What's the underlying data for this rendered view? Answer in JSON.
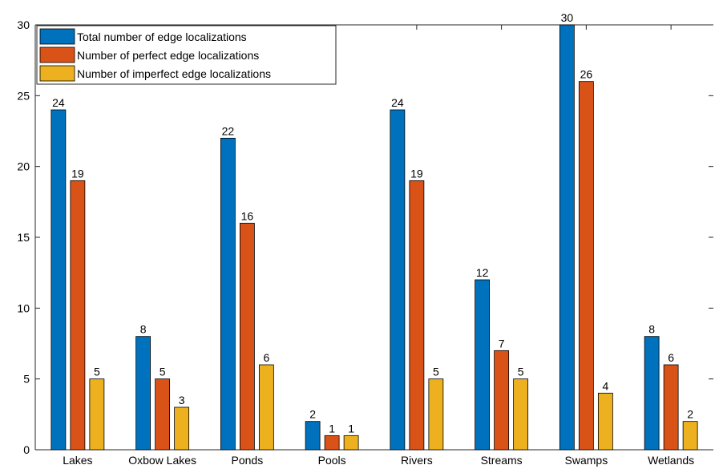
{
  "chart_data": {
    "type": "bar",
    "categories": [
      "Lakes",
      "Oxbow Lakes",
      "Ponds",
      "Pools",
      "Rivers",
      "Streams",
      "Swamps",
      "Wetlands"
    ],
    "series": [
      {
        "name": "Total number of edge localizations",
        "values": [
          24,
          8,
          22,
          2,
          24,
          12,
          30,
          8
        ],
        "color": "#0072BD"
      },
      {
        "name": "Number of perfect edge localizations",
        "values": [
          19,
          5,
          16,
          1,
          19,
          7,
          26,
          6
        ],
        "color": "#D95319"
      },
      {
        "name": "Number of imperfect edge localizations",
        "values": [
          5,
          3,
          6,
          1,
          5,
          5,
          4,
          2
        ],
        "color": "#EDB120"
      }
    ],
    "ylim": [
      0,
      30
    ],
    "yticks": [
      0,
      5,
      10,
      15,
      20,
      25,
      30
    ],
    "grid": false,
    "legend_position": "top-left",
    "data_labels": true,
    "title": "",
    "xlabel": "",
    "ylabel": ""
  }
}
